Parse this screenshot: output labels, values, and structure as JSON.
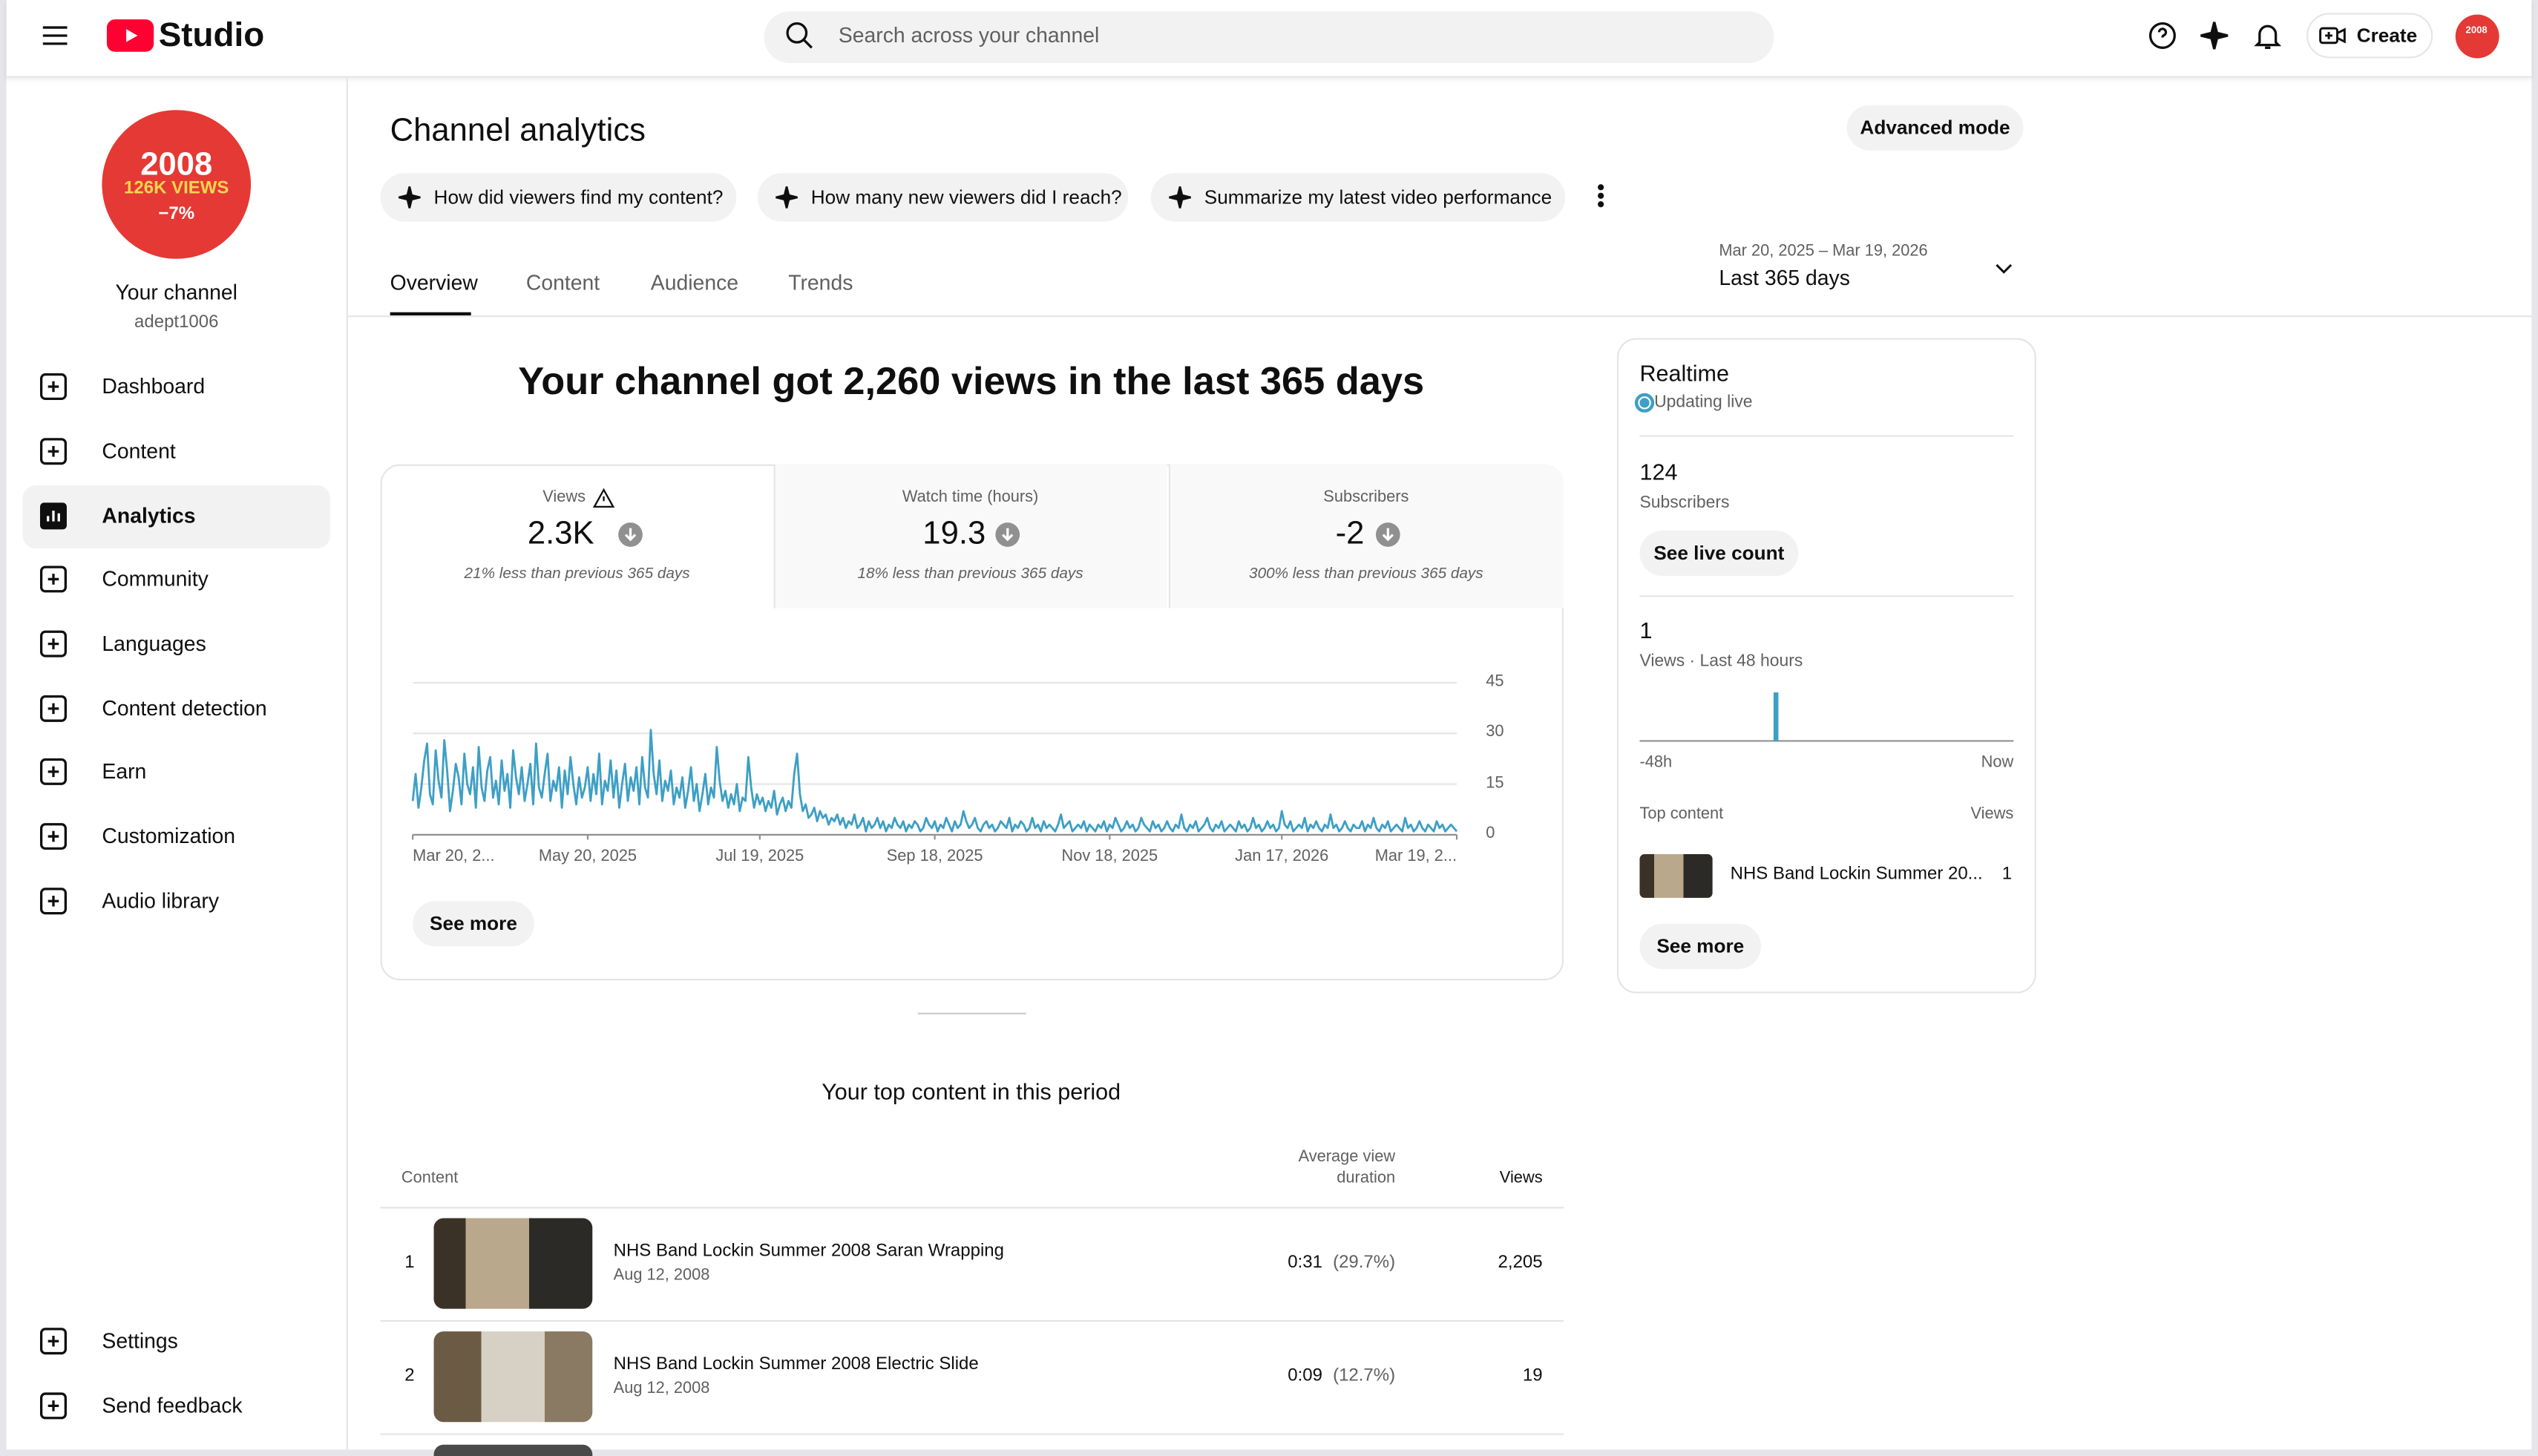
{
  "header": {
    "logo": "Studio",
    "search_placeholder": "Search across your channel",
    "create": "Create"
  },
  "sidebar": {
    "avatar": {
      "line1": "2008",
      "line2": "126K VIEWS",
      "line3": "−7%"
    },
    "channel_name": "Your channel",
    "handle": "adept1006",
    "nav": [
      "Dashboard",
      "Content",
      "Analytics",
      "Community",
      "Languages",
      "Content detection",
      "Earn",
      "Customization",
      "Audio library"
    ],
    "bottom": [
      "Settings",
      "Send feedback"
    ]
  },
  "page": {
    "title": "Channel analytics",
    "advanced": "Advanced mode",
    "prompts": [
      "How did viewers find my content?",
      "How many new viewers did I reach?",
      "Summarize my latest video performance"
    ],
    "tabs": [
      "Overview",
      "Content",
      "Audience",
      "Trends"
    ],
    "date_range": "Mar 20, 2025 – Mar 19, 2026",
    "period": "Last 365 days"
  },
  "overview": {
    "headline": "Your channel got 2,260 views in the last 365 days",
    "metrics": [
      {
        "label": "Views",
        "value": "2.3K",
        "note": "21% less than previous 365 days"
      },
      {
        "label": "Watch time (hours)",
        "value": "19.3",
        "note": "18% less than previous 365 days"
      },
      {
        "label": "Subscribers",
        "value": "-2",
        "note": "300% less than previous 365 days"
      }
    ],
    "see_more": "See more"
  },
  "chart_data": {
    "type": "line",
    "color": "#3d9fc5",
    "grid": true,
    "ylim": [
      0,
      45
    ],
    "yticks": [
      0,
      15,
      30,
      45
    ],
    "xlim": [
      0,
      364
    ],
    "xticks": [
      {
        "value": 0,
        "label": "Mar 20, 2..."
      },
      {
        "value": 61,
        "label": "May 20, 2025"
      },
      {
        "value": 121,
        "label": "Jul 19, 2025"
      },
      {
        "value": 182,
        "label": "Sep 18, 2025"
      },
      {
        "value": 243,
        "label": "Nov 18, 2025"
      },
      {
        "value": 303,
        "label": "Jan 17, 2026"
      },
      {
        "value": 364,
        "label": "Mar 19, 2..."
      }
    ],
    "values": [
      10,
      18,
      8,
      14,
      22,
      27,
      12,
      9,
      25,
      16,
      11,
      28,
      19,
      7,
      13,
      21,
      17,
      9,
      24,
      15,
      12,
      20,
      8,
      26,
      14,
      10,
      19,
      23,
      11,
      16,
      9,
      22,
      13,
      18,
      8,
      25,
      17,
      12,
      20,
      10,
      15,
      21,
      9,
      27,
      14,
      11,
      18,
      24,
      10,
      16,
      13,
      20,
      8,
      19,
      12,
      23,
      15,
      9,
      17,
      11,
      14,
      20,
      10,
      18,
      12,
      24,
      9,
      16,
      13,
      22,
      11,
      19,
      8,
      15,
      21,
      10,
      17,
      13,
      20,
      9,
      23,
      14,
      11,
      31,
      18,
      12,
      22,
      10,
      16,
      13,
      19,
      9,
      14,
      11,
      17,
      8,
      13,
      20,
      10,
      15,
      7,
      12,
      18,
      9,
      14,
      11,
      26,
      16,
      10,
      13,
      8,
      12,
      9,
      15,
      7,
      11,
      10,
      23,
      14,
      8,
      12,
      9,
      11,
      7,
      10,
      8,
      13,
      6,
      9,
      11,
      7,
      10,
      8,
      18,
      24,
      12,
      7,
      9,
      5,
      6,
      8,
      4,
      7,
      5,
      6,
      3,
      5,
      4,
      6,
      3,
      5,
      2,
      4,
      3,
      6,
      2,
      3,
      5,
      1,
      4,
      2,
      3,
      5,
      2,
      4,
      1,
      3,
      2,
      5,
      3,
      2,
      4,
      1,
      3,
      2,
      4,
      3,
      1,
      2,
      5,
      3,
      2,
      4,
      1,
      3,
      2,
      5,
      3,
      1,
      4,
      2,
      3,
      7,
      4,
      2,
      3,
      5,
      2,
      1,
      3,
      4,
      2,
      3,
      1,
      2,
      4,
      3,
      2,
      5,
      1,
      3,
      2,
      4,
      3,
      1,
      2,
      5,
      2,
      3,
      1,
      4,
      2,
      3,
      2,
      1,
      3,
      6,
      2,
      3,
      4,
      1,
      2,
      3,
      2,
      4,
      1,
      3,
      2,
      1,
      3,
      2,
      4,
      1,
      3,
      2,
      5,
      3,
      1,
      2,
      4,
      2,
      3,
      1,
      2,
      5,
      3,
      2,
      1,
      4,
      2,
      3,
      1,
      2,
      4,
      2,
      1,
      3,
      2,
      6,
      2,
      1,
      3,
      2,
      4,
      1,
      2,
      3,
      5,
      2,
      1,
      3,
      2,
      4,
      1,
      2,
      3,
      2,
      1,
      4,
      2,
      3,
      1,
      2,
      5,
      2,
      3,
      1,
      2,
      4,
      2,
      3,
      1,
      2,
      7,
      3,
      2,
      4,
      1,
      2,
      3,
      2,
      5,
      1,
      3,
      2,
      4,
      2,
      1,
      3,
      2,
      6,
      2,
      3,
      1,
      2,
      4,
      2,
      1,
      3,
      2,
      2,
      4,
      1,
      3,
      2,
      5,
      2,
      1,
      3,
      2,
      4,
      1,
      2,
      3,
      2,
      1,
      5,
      2,
      3,
      1,
      2,
      4,
      2,
      1,
      3,
      2,
      1,
      4,
      2,
      3,
      1,
      2,
      3,
      2,
      1
    ]
  },
  "top_content": {
    "title": "Your top content in this period",
    "col_content": "Content",
    "col_duration_1": "Average view",
    "col_duration_2": "duration",
    "col_views": "Views",
    "rows": [
      {
        "rank": "1",
        "title": "NHS Band Lockin Summer 2008 Saran Wrapping",
        "date": "Aug 12, 2008",
        "duration": "0:31",
        "percent": "(29.7%)",
        "views": "2,205"
      },
      {
        "rank": "2",
        "title": "NHS Band Lockin Summer 2008 Electric Slide",
        "date": "Aug 12, 2008",
        "duration": "0:09",
        "percent": "(12.7%)",
        "views": "19"
      }
    ]
  },
  "realtime": {
    "title": "Realtime",
    "status": "Updating live",
    "subs_value": "124",
    "subs_label": "Subscribers",
    "see_live": "See live count",
    "views_value": "1",
    "views_label": "Views · Last 48 hours",
    "chart": {
      "type": "bar",
      "color": "#3d9fc5",
      "ylim": [
        0,
        1
      ],
      "values": [
        0,
        0,
        0,
        0,
        0,
        0,
        0,
        0,
        0,
        0,
        0,
        0,
        0,
        0,
        0,
        0,
        0,
        1,
        0,
        0,
        0,
        0,
        0,
        0,
        0,
        0,
        0,
        0,
        0,
        0,
        0,
        0,
        0,
        0,
        0,
        0,
        0,
        0,
        0,
        0,
        0,
        0,
        0,
        0,
        0,
        0,
        0,
        0
      ]
    },
    "x_start": "-48h",
    "x_end": "Now",
    "top_label": "Top content",
    "views_col": "Views",
    "item_title": "NHS Band Lockin Summer 20...",
    "item_views": "1",
    "see_more": "See more"
  }
}
